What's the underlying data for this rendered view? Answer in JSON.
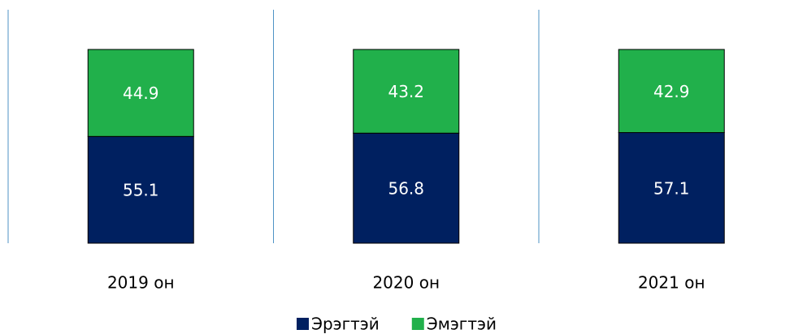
{
  "chart_data": {
    "type": "stacked_bar",
    "categories": [
      "2019 он",
      "2020 он",
      "2021 он"
    ],
    "series": [
      {
        "name": "Эрэгтэй",
        "color": "#002060",
        "values": [
          55.1,
          56.8,
          57.1
        ]
      },
      {
        "name": "Эмэгтэй",
        "color": "#21b04b",
        "values": [
          44.9,
          43.2,
          42.9
        ]
      }
    ],
    "ylim": [
      0,
      100
    ],
    "legend": "bottom"
  }
}
